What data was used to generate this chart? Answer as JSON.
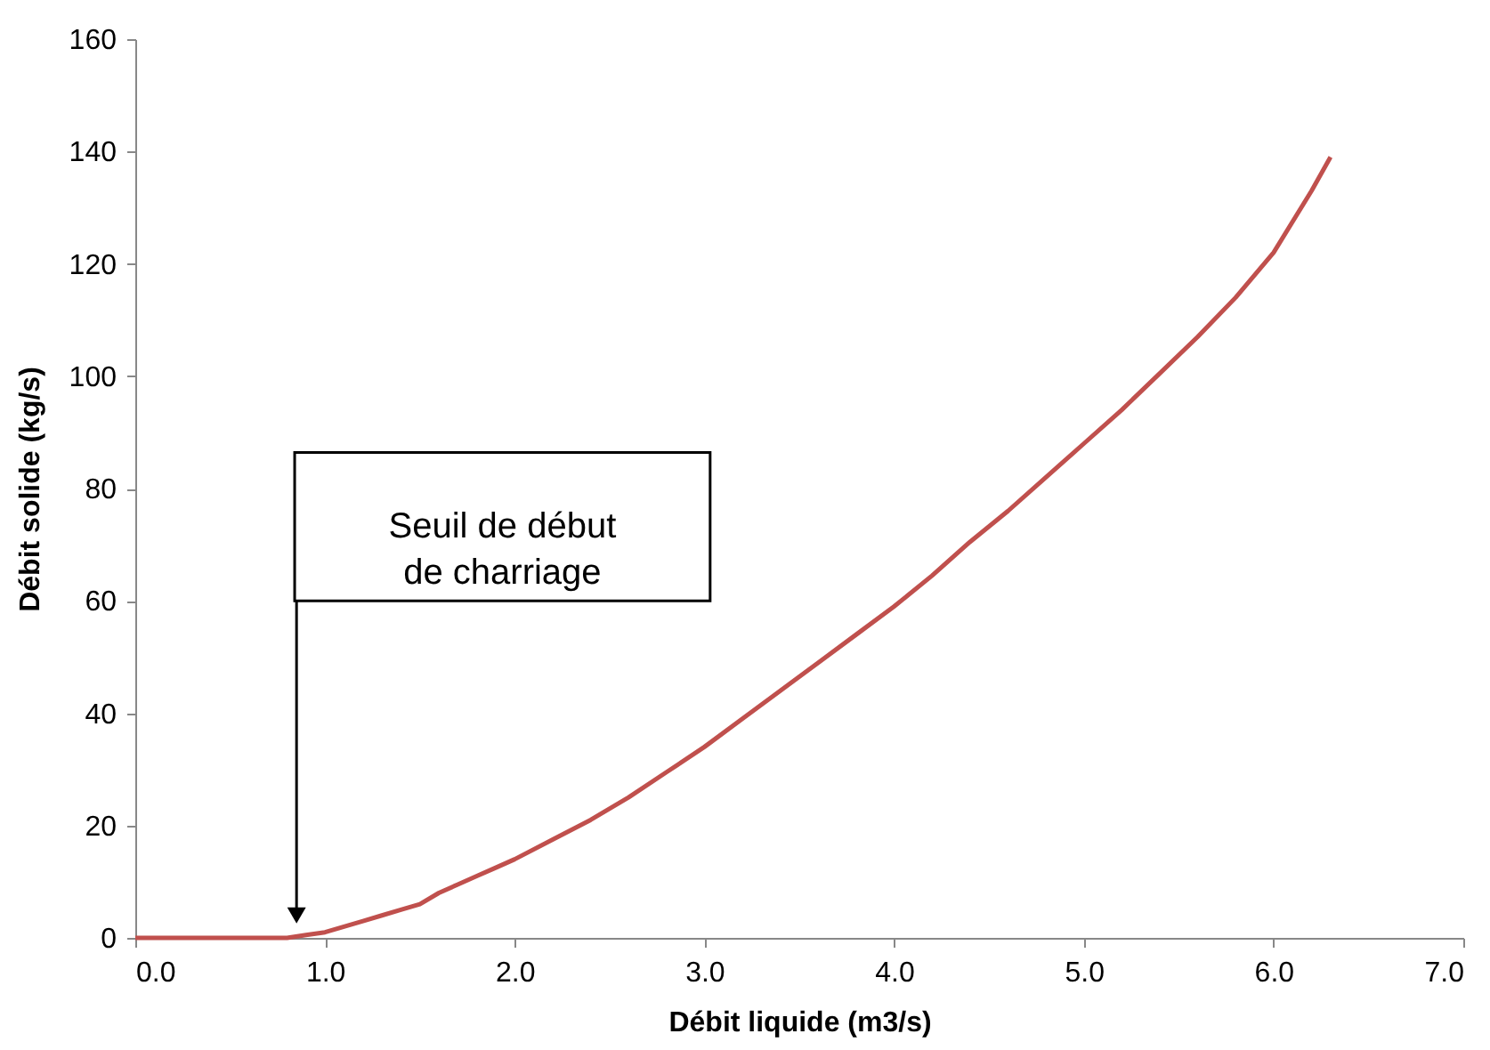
{
  "chart_data": {
    "type": "line",
    "xlabel": "Débit liquide (m3/s)",
    "ylabel": "Débit solide (kg/s)",
    "x": [
      0,
      0.2,
      0.4,
      0.6,
      0.8,
      0.9,
      1.0,
      1.1,
      1.2,
      1.3,
      1.4,
      1.5,
      1.6,
      1.7,
      1.8,
      1.9,
      2.0,
      2.2,
      2.4,
      2.6,
      2.8,
      3.0,
      3.2,
      3.4,
      3.6,
      3.8,
      4.0,
      4.2,
      4.4,
      4.6,
      4.8,
      5.0,
      5.2,
      5.4,
      5.6,
      5.8,
      6.0,
      6.2,
      6.3
    ],
    "series": [
      {
        "color": "#c0504d",
        "values": [
          0,
          0,
          0,
          0,
          0,
          0.5,
          1,
          2,
          3,
          4,
          5,
          6,
          8,
          9.5,
          11,
          12.5,
          14,
          17.5,
          21,
          25,
          29.5,
          34,
          39,
          44,
          49,
          54,
          59,
          64.5,
          70.5,
          76,
          82,
          88,
          94,
          100.5,
          107,
          114,
          122,
          133,
          139
        ]
      }
    ],
    "xlim": [
      0,
      7
    ],
    "xticks": [
      {
        "value": 0,
        "label": "0.0"
      },
      {
        "value": 1,
        "label": "1.0"
      },
      {
        "value": 2,
        "label": "2.0"
      },
      {
        "value": 3,
        "label": "3.0"
      },
      {
        "value": 4,
        "label": "4.0"
      },
      {
        "value": 5,
        "label": "5.0"
      },
      {
        "value": 6,
        "label": "6.0"
      },
      {
        "value": 7,
        "label": "7.0"
      }
    ],
    "ylim": [
      0,
      160
    ],
    "yticks": [
      0,
      20,
      40,
      60,
      80,
      100,
      120,
      140,
      160
    ],
    "grid": false,
    "legend": false,
    "marker": "none",
    "line_style": "solid",
    "annotations": [
      "Seuil de début de charriage"
    ]
  }
}
